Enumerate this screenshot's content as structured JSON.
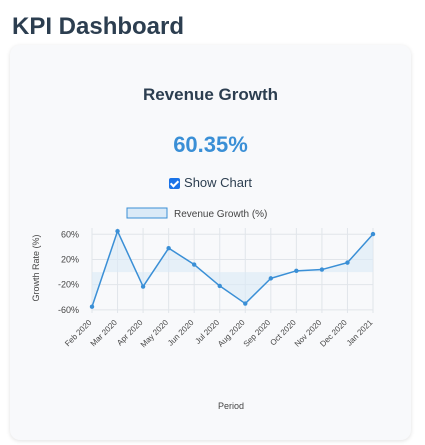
{
  "page": {
    "title": "KPI Dashboard"
  },
  "card": {
    "title": "Revenue Growth",
    "kpi_value": "60.35%",
    "toggle_label": "Show Chart",
    "toggle_checked": true
  },
  "colors": {
    "line": "#3a8fd6",
    "fill": "#dbeaf7",
    "accent": "#1a73e8"
  },
  "chart_data": {
    "type": "line",
    "title": "",
    "xlabel": "Period",
    "ylabel": "Growth Rate (%)",
    "categories": [
      "Feb 2020",
      "Mar 2020",
      "Apr 2020",
      "May 2020",
      "Jun 2020",
      "Jul 2020",
      "Aug 2020",
      "Sep 2020",
      "Oct 2020",
      "Nov 2020",
      "Dec 2020",
      "Jan 2021"
    ],
    "series": [
      {
        "name": "Revenue Growth (%)",
        "values": [
          -55,
          65,
          -23,
          38,
          12,
          -22,
          -50,
          -10,
          2,
          4,
          15,
          60.35
        ]
      }
    ],
    "yticks": [
      -60,
      -20,
      20,
      60
    ],
    "ytick_labels": [
      "-60%",
      "-20%",
      "20%",
      "60%"
    ],
    "ylim": [
      -65,
      70
    ],
    "grid": true,
    "legend_position": "top"
  }
}
